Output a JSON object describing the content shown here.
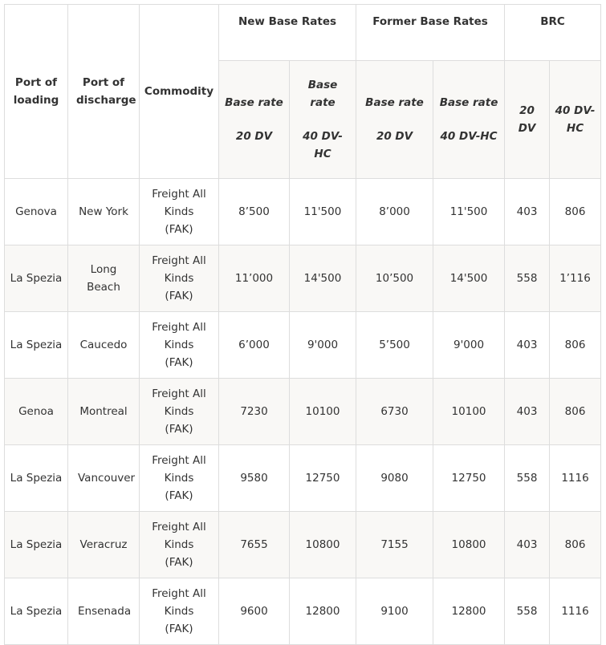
{
  "header": {
    "port_of_loading": "Port of loading",
    "port_of_discharge": "Port of discharge",
    "commodity": "Commodity",
    "groups": [
      "New Base Rates",
      "Former Base Rates",
      "BRC"
    ],
    "sub": {
      "new_20": [
        "Base rate",
        "20 DV"
      ],
      "new_40": [
        "Base rate",
        "40 DV-HC"
      ],
      "former_20": [
        "Base rate",
        "20 DV"
      ],
      "former_40": [
        "Base rate",
        "40 DV-HC"
      ],
      "brc_20": "20 DV",
      "brc_40": "40 DV-HC"
    }
  },
  "rows": [
    {
      "pol": "Genova",
      "pod": "New York",
      "commodity": "Freight All Kinds (FAK)",
      "new20": "8’500",
      "new40": "11'500",
      "old20": "8’000",
      "old40": "11'500",
      "brc20": "403",
      "brc40": "806"
    },
    {
      "pol": "La Spezia",
      "pod": "Long Beach",
      "commodity": "Freight All Kinds (FAK)",
      "new20": "11’000",
      "new40": "14'500",
      "old20": "10’500",
      "old40": "14'500",
      "brc20": "558",
      "brc40": "1’116"
    },
    {
      "pol": "La Spezia",
      "pod": "Caucedo",
      "commodity": "Freight All Kinds (FAK)",
      "new20": "6’000",
      "new40": "9'000",
      "old20": "5’500",
      "old40": "9'000",
      "brc20": "403",
      "brc40": "806"
    },
    {
      "pol": "Genoa",
      "pod": "Montreal",
      "commodity": "Freight All Kinds (FAK)",
      "new20": "7230",
      "new40": "10100",
      "old20": "6730",
      "old40": "10100",
      "brc20": "403",
      "brc40": "806"
    },
    {
      "pol": "La Spezia",
      "pod": "Vancouver",
      "commodity": "Freight All Kinds (FAK)",
      "new20": "9580",
      "new40": "12750",
      "old20": "9080",
      "old40": "12750",
      "brc20": "558",
      "brc40": "1116"
    },
    {
      "pol": "La Spezia",
      "pod": "Veracruz",
      "commodity": "Freight All Kinds (FAK)",
      "new20": "7655",
      "new40": "10800",
      "old20": "7155",
      "old40": "10800",
      "brc20": "403",
      "brc40": "806"
    },
    {
      "pol": "La Spezia",
      "pod": "Ensenada",
      "commodity": "Freight All Kinds (FAK)",
      "new20": "9600",
      "new40": "12800",
      "old20": "9100",
      "old40": "12800",
      "brc20": "558",
      "brc40": "1116"
    }
  ]
}
